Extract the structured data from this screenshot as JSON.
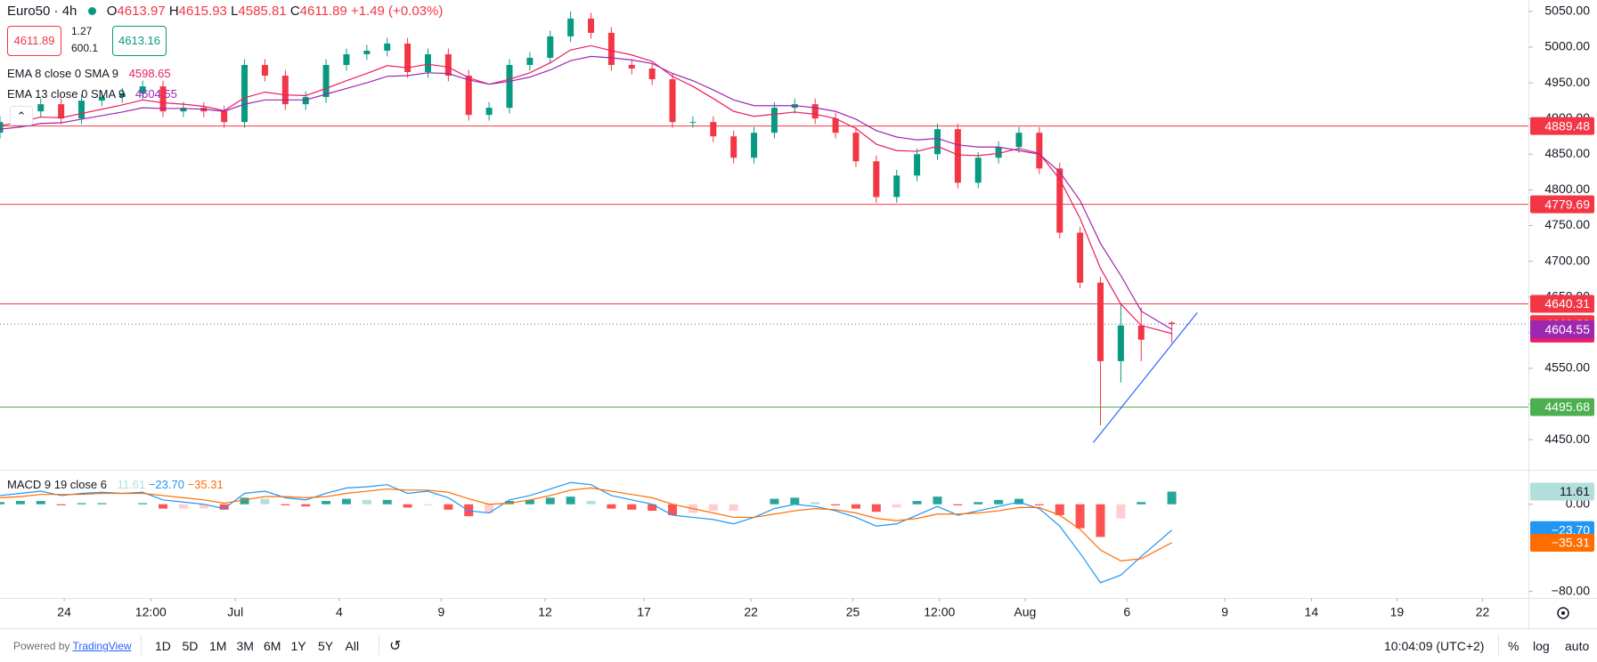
{
  "header": {
    "symbol": "Euro50 · 4h",
    "o_key": "O",
    "open": "4613.97",
    "h_key": "H",
    "high": "4615.93",
    "l_key": "L",
    "low": "4585.81",
    "c_key": "C",
    "close": "4611.89",
    "change": "+1.49 (+0.03%)",
    "spread": "1.27",
    "volume": "600.1",
    "buy": "4613.16",
    "ema8_label": "EMA 8 close 0 SMA 9",
    "ema13_label": "EMA 13 close 0 SMA 9",
    "macd_label": "MACD 9 19 close 6"
  },
  "toolbar": {
    "powered": "Powered by",
    "brand": "TradingView",
    "ranges": [
      "1D",
      "5D",
      "1M",
      "3M",
      "6M",
      "1Y",
      "5Y",
      "All"
    ],
    "time": "10:04:09 (UTC+2)",
    "percent": "%",
    "log": "log",
    "auto": "auto"
  },
  "chart_data": [
    {
      "type": "candlestick",
      "up_color": "#089981",
      "down_color": "#f23645",
      "x": [
        0,
        2,
        4,
        6,
        8,
        10,
        12,
        14,
        16,
        18,
        20,
        22,
        24,
        26,
        28,
        30,
        32,
        34,
        36,
        38,
        40,
        42,
        44,
        46,
        48,
        50,
        52,
        54,
        56,
        58,
        60,
        62,
        64,
        66,
        68,
        70,
        72,
        74,
        76,
        78,
        80,
        82,
        84,
        86,
        88,
        90,
        92,
        94,
        96,
        98,
        100,
        102,
        104,
        106,
        108,
        110,
        112,
        115
      ],
      "open": [
        4880,
        4895,
        4910,
        4920,
        4900,
        4925,
        4930,
        4935,
        4945,
        4910,
        4915,
        4910,
        4895,
        4975,
        4960,
        4920,
        4930,
        4975,
        4990,
        4995,
        5005,
        4965,
        4990,
        4960,
        4905,
        4915,
        4975,
        4985,
        5015,
        5040,
        5020,
        4975,
        4970,
        4955,
        4895,
        4895,
        4875,
        4845,
        4880,
        4915,
        4920,
        4900,
        4880,
        4840,
        4790,
        4820,
        4850,
        4885,
        4810,
        4845,
        4860,
        4880,
        4830,
        4740,
        4670,
        4560,
        4610,
        4613.97
      ],
      "high": [
        4903,
        4918,
        4928,
        4928,
        4933,
        4938,
        4943,
        4953,
        4953,
        4923,
        4923,
        4918,
        4983,
        4983,
        4968,
        4938,
        4983,
        4998,
        5003,
        5013,
        5013,
        4998,
        4998,
        4968,
        4923,
        4983,
        4993,
        5023,
        5050,
        5048,
        5028,
        4983,
        4978,
        4963,
        4903,
        4903,
        4883,
        4888,
        4923,
        4928,
        4928,
        4908,
        4888,
        4848,
        4828,
        4858,
        4893,
        4893,
        4853,
        4868,
        4888,
        4888,
        4838,
        4748,
        4678,
        4640,
        4635,
        4615.93
      ],
      "low": [
        4872,
        4887,
        4902,
        4892,
        4892,
        4917,
        4922,
        4927,
        4902,
        4902,
        4902,
        4887,
        4887,
        4952,
        4912,
        4912,
        4922,
        4967,
        4982,
        4987,
        4957,
        4957,
        4952,
        4897,
        4897,
        4907,
        4967,
        4977,
        5007,
        5012,
        4967,
        4962,
        4947,
        4887,
        4887,
        4867,
        4837,
        4837,
        4872,
        4907,
        4892,
        4872,
        4832,
        4782,
        4782,
        4812,
        4842,
        4802,
        4802,
        4837,
        4852,
        4822,
        4732,
        4662,
        4470,
        4530,
        4560,
        4585.81
      ],
      "close": [
        4895,
        4910,
        4920,
        4900,
        4925,
        4930,
        4935,
        4945,
        4910,
        4915,
        4910,
        4895,
        4975,
        4960,
        4920,
        4930,
        4975,
        4990,
        4995,
        5005,
        4965,
        4990,
        4960,
        4905,
        4915,
        4975,
        4985,
        5015,
        5040,
        5020,
        4975,
        4970,
        4955,
        4895,
        4895,
        4875,
        4845,
        4880,
        4915,
        4920,
        4900,
        4880,
        4840,
        4790,
        4820,
        4850,
        4885,
        4810,
        4845,
        4860,
        4880,
        4830,
        4740,
        4670,
        4560,
        4610,
        4590,
        4611.89
      ],
      "series": [
        {
          "name": "EMA 8",
          "color": "#e91e63",
          "values": [
            4890,
            4895,
            4902,
            4901,
            4907,
            4913,
            4919,
            4926,
            4922,
            4920,
            4917,
            4911,
            4929,
            4937,
            4933,
            4932,
            4942,
            4953,
            4963,
            4974,
            4971,
            4976,
            4972,
            4957,
            4948,
            4955,
            4964,
            4978,
            4996,
            5002,
            4995,
            4989,
            4980,
            4959,
            4945,
            4928,
            4910,
            4903,
            4906,
            4909,
            4906,
            4900,
            4886,
            4864,
            4855,
            4854,
            4861,
            4849,
            4848,
            4851,
            4858,
            4851,
            4815,
            4760,
            4690,
            4640,
            4610,
            4598.65
          ]
        },
        {
          "name": "EMA 13",
          "color": "#9c27b0",
          "values": [
            4885,
            4888,
            4893,
            4894,
            4899,
            4904,
            4909,
            4915,
            4914,
            4914,
            4913,
            4910,
            4920,
            4926,
            4926,
            4926,
            4934,
            4942,
            4950,
            4959,
            4960,
            4964,
            4963,
            4954,
            4948,
            4952,
            4958,
            4968,
            4981,
            4987,
            4985,
            4982,
            4977,
            4963,
            4953,
            4940,
            4926,
            4918,
            4918,
            4918,
            4915,
            4910,
            4899,
            4883,
            4874,
            4870,
            4872,
            4863,
            4860,
            4860,
            4855,
            4850,
            4825,
            4785,
            4725,
            4680,
            4630,
            4604.55
          ]
        }
      ],
      "levels": [
        {
          "value": 4889.48,
          "color": "#f23645"
        },
        {
          "value": 4779.69,
          "color": "#f23645"
        },
        {
          "value": 4640.31,
          "color": "#f23645"
        },
        {
          "value": 4495.68,
          "color": "#4caf50"
        }
      ],
      "trendline": {
        "color": "#2962ff",
        "x": [
          107.3,
          117.5
        ],
        "y": [
          4446,
          4628
        ]
      },
      "xlim": [
        0,
        150
      ],
      "ylim": [
        4409,
        5066
      ],
      "xticks": [
        {
          "value": 6.3,
          "label": "24"
        },
        {
          "value": 14.8,
          "label": "12:00"
        },
        {
          "value": 23.1,
          "label": "Jul"
        },
        {
          "value": 33.3,
          "label": "4"
        },
        {
          "value": 43.3,
          "label": "9"
        },
        {
          "value": 53.5,
          "label": "12"
        },
        {
          "value": 63.2,
          "label": "17"
        },
        {
          "value": 73.7,
          "label": "22"
        },
        {
          "value": 83.7,
          "label": "25"
        },
        {
          "value": 92.2,
          "label": "12:00"
        },
        {
          "value": 100.6,
          "label": "Aug"
        },
        {
          "value": 110.6,
          "label": "6"
        },
        {
          "value": 120.2,
          "label": "9"
        },
        {
          "value": 128.7,
          "label": "14"
        },
        {
          "value": 137.1,
          "label": "19"
        },
        {
          "value": 145.5,
          "label": "22"
        }
      ],
      "yticks": [
        {
          "value": 4450,
          "label": "4450.00"
        },
        {
          "value": 4500,
          "label": "4500.00"
        },
        {
          "value": 4550,
          "label": "4550.00"
        },
        {
          "value": 4600,
          "label": "4600.00"
        },
        {
          "value": 4650,
          "label": "4650.00"
        },
        {
          "value": 4700,
          "label": "4700.00"
        },
        {
          "value": 4750,
          "label": "4750.00"
        },
        {
          "value": 4800,
          "label": "4800.00"
        },
        {
          "value": 4850,
          "label": "4850.00"
        },
        {
          "value": 4900,
          "label": "4900.00"
        },
        {
          "value": 4950,
          "label": "4950.00"
        },
        {
          "value": 5000,
          "label": "5000.00"
        },
        {
          "value": 5050,
          "label": "5050.00"
        }
      ]
    },
    {
      "type": "macd",
      "hist_colors": [
        "#26a69a",
        "#b2dfdb",
        "#ffcdd2",
        "#ff5252"
      ],
      "hist_label_color": "#b2dfdb",
      "x": [
        0,
        2,
        4,
        6,
        8,
        10,
        12,
        14,
        16,
        18,
        20,
        22,
        24,
        26,
        28,
        30,
        32,
        34,
        36,
        38,
        40,
        42,
        44,
        46,
        48,
        50,
        52,
        54,
        56,
        58,
        60,
        62,
        64,
        66,
        68,
        70,
        72,
        74,
        76,
        78,
        80,
        82,
        84,
        86,
        88,
        90,
        92,
        94,
        96,
        98,
        100,
        102,
        104,
        106,
        108,
        110,
        112,
        115
      ],
      "histogram": [
        2,
        3,
        3,
        -1,
        1,
        1,
        0,
        1,
        -4,
        -4,
        -4,
        -5,
        6,
        5,
        -1,
        -2,
        3,
        5,
        4,
        4,
        -3,
        -1,
        -5,
        -11,
        -8,
        3,
        4,
        6,
        7,
        3,
        -4,
        -5,
        -6,
        -10,
        -8,
        -6,
        -6,
        0,
        5,
        6,
        2,
        -1,
        -4,
        -7,
        -3,
        3,
        7,
        -1,
        2,
        4,
        5,
        -1,
        -10,
        -22,
        -30,
        -13,
        2,
        11.61
      ],
      "series": [
        {
          "name": "MACD",
          "color": "#2196f3",
          "value_label": "−23.70",
          "values": [
            8,
            10,
            12,
            8,
            10,
            11,
            10,
            11,
            4,
            2,
            0,
            -4,
            10,
            12,
            6,
            4,
            10,
            15,
            16,
            18,
            10,
            12,
            6,
            -6,
            -8,
            4,
            8,
            14,
            20,
            18,
            8,
            4,
            0,
            -10,
            -12,
            -14,
            -18,
            -12,
            -4,
            0,
            -2,
            -6,
            -12,
            -20,
            -18,
            -10,
            -2,
            -10,
            -6,
            -2,
            2,
            -4,
            -20,
            -45,
            -72,
            -65,
            -48,
            -23.7
          ]
        },
        {
          "name": "Signal",
          "color": "#ff6d00",
          "value_label": "−35.31",
          "values": [
            6,
            7,
            9,
            9,
            9,
            10,
            10,
            10,
            8,
            6,
            4,
            1,
            4,
            7,
            7,
            6,
            7,
            10,
            12,
            14,
            13,
            13,
            11,
            5,
            0,
            1,
            4,
            8,
            13,
            15,
            12,
            9,
            6,
            0,
            -4,
            -8,
            -12,
            -12,
            -9,
            -6,
            -4,
            -5,
            -8,
            -13,
            -15,
            -13,
            -9,
            -9,
            -8,
            -6,
            -3,
            -3,
            -10,
            -23,
            -42,
            -52,
            -50,
            -35.31
          ]
        }
      ],
      "xlim": [
        0,
        150
      ],
      "ylim": [
        -86,
        30
      ],
      "yticks": [
        {
          "value": 0,
          "label": "0.00"
        },
        {
          "value": -80,
          "label": "−80.00"
        }
      ]
    }
  ]
}
